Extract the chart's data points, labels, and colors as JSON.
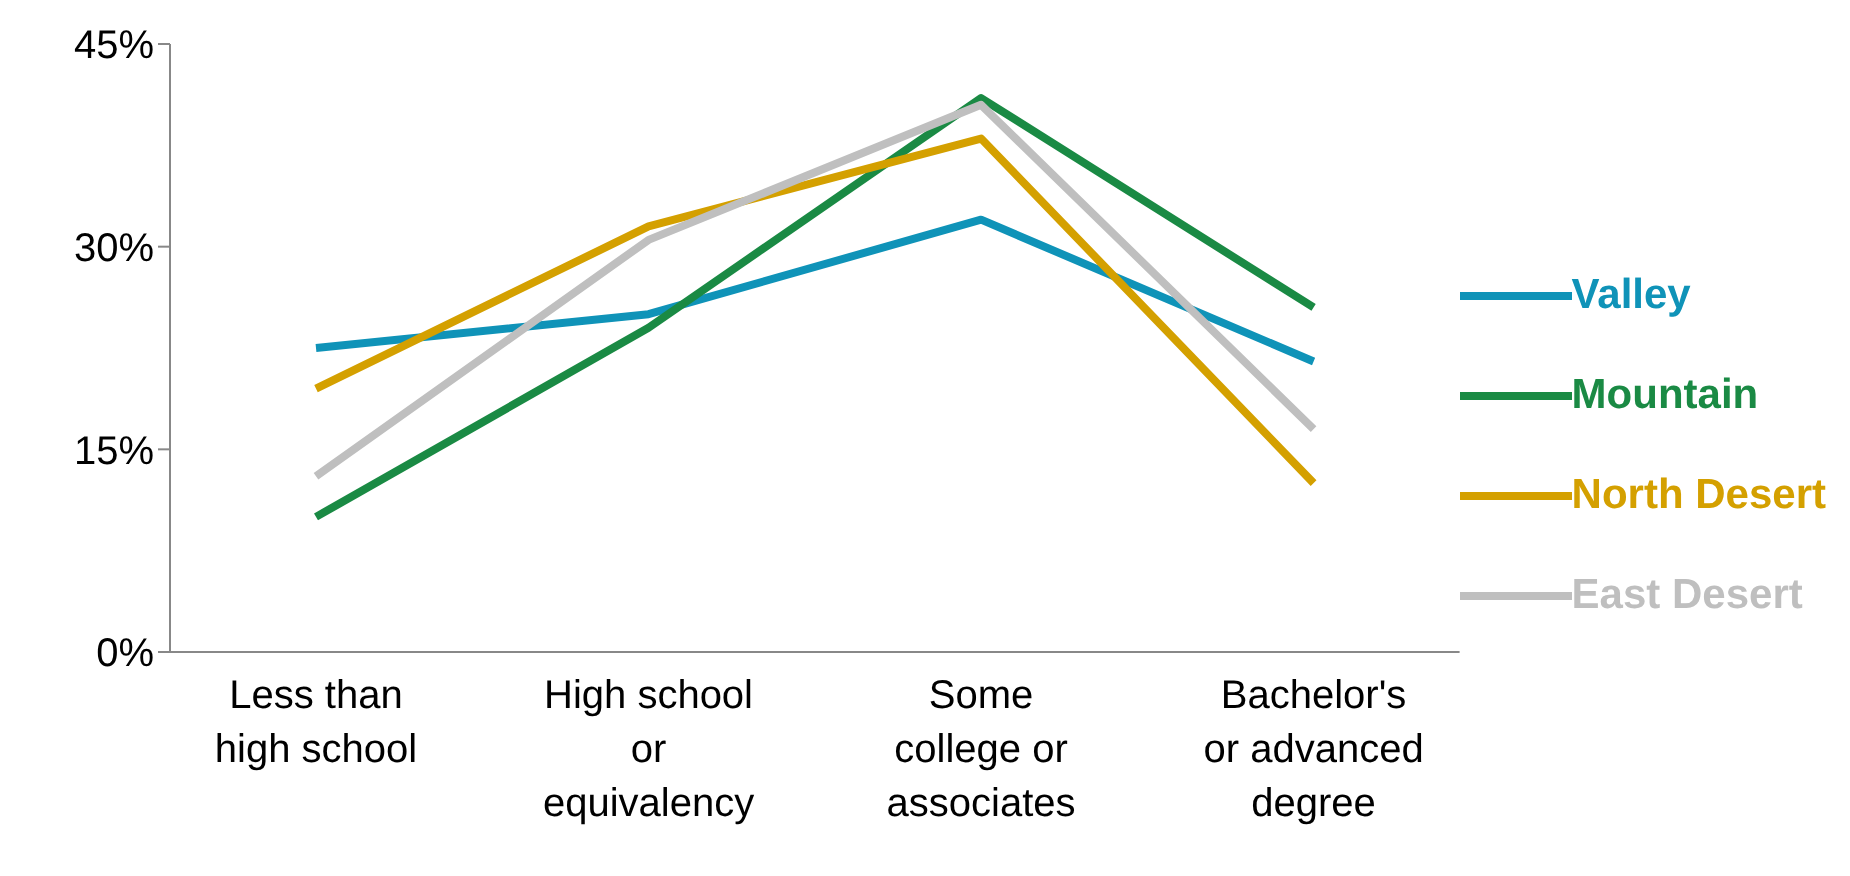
{
  "chart_data": {
    "type": "line",
    "categories": [
      "Less than high school",
      "High school or equivalency",
      "Some college or associates",
      "Bachelor's or advanced degree"
    ],
    "series": [
      {
        "name": "Valley",
        "color": "#0f93b8",
        "values": [
          22.5,
          25,
          32,
          21.5
        ]
      },
      {
        "name": "Mountain",
        "color": "#1a8a44",
        "values": [
          10,
          24,
          41,
          25.5
        ]
      },
      {
        "name": "North Desert",
        "color": "#d4a000",
        "values": [
          19.5,
          31.5,
          38,
          12.5
        ]
      },
      {
        "name": "East Desert",
        "color": "#bfbfbf",
        "values": [
          13,
          30.5,
          40.5,
          16.5
        ]
      }
    ],
    "ylim": [
      0,
      45
    ],
    "yticks": [
      {
        "value": 0,
        "label": "0%"
      },
      {
        "value": 15,
        "label": "15%"
      },
      {
        "value": 30,
        "label": "30%"
      },
      {
        "value": 45,
        "label": "45%"
      }
    ],
    "grid": false,
    "legend": "right",
    "marker": "none",
    "line_style": "solid"
  }
}
